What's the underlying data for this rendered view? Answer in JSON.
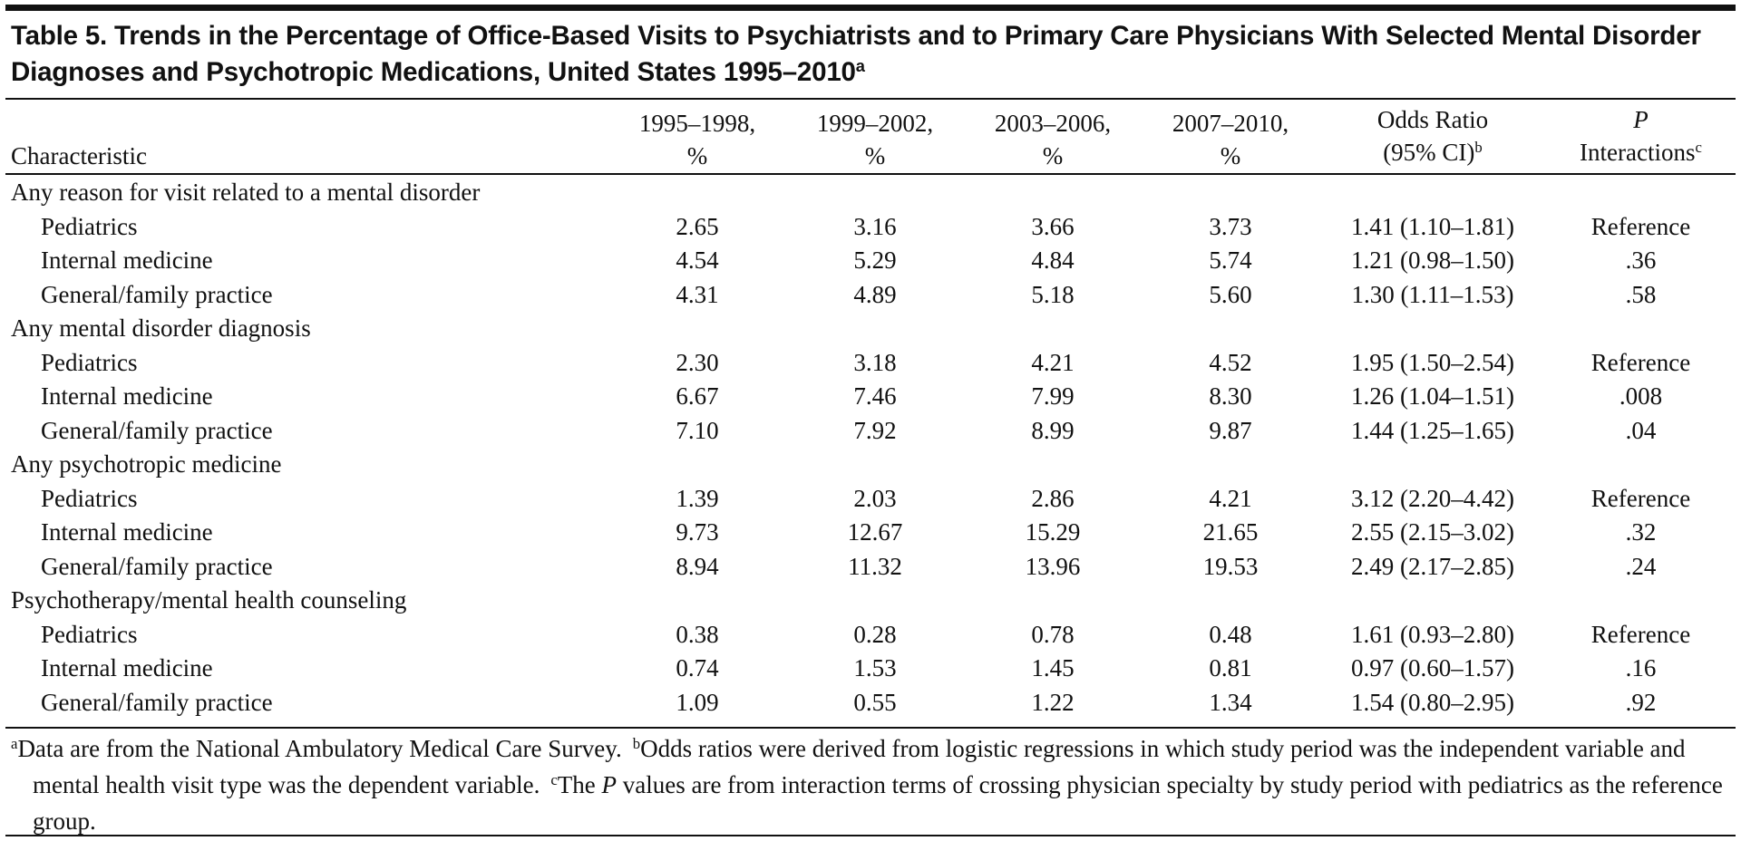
{
  "title": {
    "text": "Table 5. Trends in the Percentage of Office-Based Visits to Psychiatrists and to Primary Care Physicians With Selected Mental Disorder Diagnoses and Psychotropic Medications, United States 1995–2010",
    "note_mark": "a"
  },
  "table": {
    "columns": [
      {
        "lines": [
          "Characteristic"
        ]
      },
      {
        "lines": [
          "1995–1998,",
          "%"
        ]
      },
      {
        "lines": [
          "1999–2002,",
          "%"
        ]
      },
      {
        "lines": [
          "2003–2006,",
          "%"
        ]
      },
      {
        "lines": [
          "2007–2010,",
          "%"
        ]
      },
      {
        "lines": [
          "Odds Ratio",
          "(95% CI)"
        ],
        "note_mark": "b"
      },
      {
        "lines": [
          "P",
          "Interactions"
        ],
        "note_mark": "c"
      }
    ],
    "groups": [
      {
        "label": "Any reason for visit related to a mental disorder",
        "rows": [
          [
            "Pediatrics",
            "2.65",
            "3.16",
            "3.66",
            "3.73",
            "1.41 (1.10–1.81)",
            "Reference"
          ],
          [
            "Internal medicine",
            "4.54",
            "5.29",
            "4.84",
            "5.74",
            "1.21 (0.98–1.50)",
            ".36"
          ],
          [
            "General/family practice",
            "4.31",
            "4.89",
            "5.18",
            "5.60",
            "1.30 (1.11–1.53)",
            ".58"
          ]
        ]
      },
      {
        "label": "Any mental disorder diagnosis",
        "rows": [
          [
            "Pediatrics",
            "2.30",
            "3.18",
            "4.21",
            "4.52",
            "1.95 (1.50–2.54)",
            "Reference"
          ],
          [
            "Internal medicine",
            "6.67",
            "7.46",
            "7.99",
            "8.30",
            "1.26 (1.04–1.51)",
            ".008"
          ],
          [
            "General/family practice",
            "7.10",
            "7.92",
            "8.99",
            "9.87",
            "1.44 (1.25–1.65)",
            ".04"
          ]
        ]
      },
      {
        "label": "Any psychotropic medicine",
        "rows": [
          [
            "Pediatrics",
            "1.39",
            "2.03",
            "2.86",
            "4.21",
            "3.12 (2.20–4.42)",
            "Reference"
          ],
          [
            "Internal medicine",
            "9.73",
            "12.67",
            "15.29",
            "21.65",
            "2.55 (2.15–3.02)",
            ".32"
          ],
          [
            "General/family practice",
            "8.94",
            "11.32",
            "13.96",
            "19.53",
            "2.49 (2.17–2.85)",
            ".24"
          ]
        ]
      },
      {
        "label": "Psychotherapy/mental health counseling",
        "rows": [
          [
            "Pediatrics",
            "0.38",
            "0.28",
            "0.78",
            "0.48",
            "1.61 (0.93–2.80)",
            "Reference"
          ],
          [
            "Internal medicine",
            "0.74",
            "1.53",
            "1.45",
            "0.81",
            "0.97 (0.60–1.57)",
            ".16"
          ],
          [
            "General/family practice",
            "1.09",
            "0.55",
            "1.22",
            "1.34",
            "1.54 (0.80–2.95)",
            ".92"
          ]
        ]
      }
    ]
  },
  "footnotes": [
    {
      "mark": "a",
      "parts": [
        "Data are from the National Ambulatory Medical Care Survey."
      ]
    },
    {
      "mark": "b",
      "parts": [
        "Odds ratios were derived from logistic regressions in which study period was the independent variable and mental health visit type was the dependent variable."
      ]
    },
    {
      "mark": "c",
      "parts": [
        "The ",
        "P",
        " values are from interaction terms of crossing physician specialty by study period with pediatrics as the reference group."
      ],
      "italic_part": 1
    }
  ]
}
